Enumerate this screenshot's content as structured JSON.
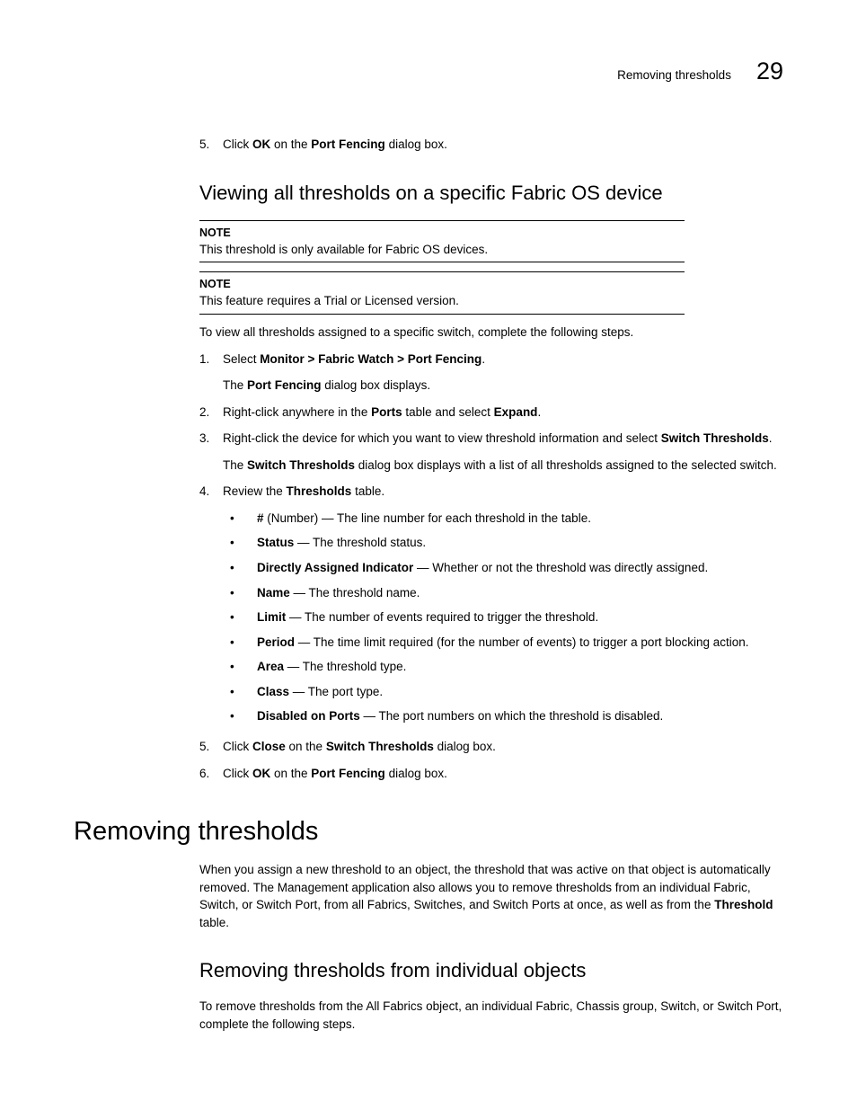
{
  "header": {
    "title": "Removing thresholds",
    "num": "29"
  },
  "step5_top": {
    "num": "5.",
    "pre": "Click ",
    "b1": "OK",
    "mid": " on the ",
    "b2": "Port Fencing",
    "post": " dialog box."
  },
  "h2a": "Viewing all thresholds on a specific Fabric OS device",
  "note1": {
    "label": "NOTE",
    "body": "This threshold is only available for Fabric OS devices."
  },
  "note2": {
    "label": "NOTE",
    "body": "This feature requires a Trial or Licensed version."
  },
  "para_intro": "To view all thresholds assigned to a specific switch, complete the following steps.",
  "s1": {
    "num": "1.",
    "pre": "Select ",
    "b": "Monitor > Fabric Watch > Port Fencing",
    "post": ".",
    "sub_pre": "The ",
    "sub_b": "Port Fencing",
    "sub_post": " dialog box displays."
  },
  "s2": {
    "num": "2.",
    "pre": "Right-click anywhere in the ",
    "b1": "Ports",
    "mid": " table and select ",
    "b2": "Expand",
    "post": "."
  },
  "s3": {
    "num": "3.",
    "pre": "Right-click the device for which you want to view threshold information and select ",
    "b": "Switch Thresholds",
    "post": ".",
    "sub_pre": "The ",
    "sub_b": "Switch Thresholds",
    "sub_post": " dialog box displays with a list of all thresholds assigned to the selected switch."
  },
  "s4": {
    "num": "4.",
    "pre": "Review the ",
    "b": "Thresholds",
    "post": " table."
  },
  "bullets": [
    {
      "b": "#",
      "post": " (Number) — The line number for each threshold in the table."
    },
    {
      "b": "Status",
      "post": " — The threshold status."
    },
    {
      "b": "Directly Assigned Indicator",
      "post": " — Whether or not the threshold was directly assigned."
    },
    {
      "b": "Name",
      "post": " — The threshold name."
    },
    {
      "b": "Limit",
      "post": " — The number of events required to trigger the threshold."
    },
    {
      "b": "Period",
      "post": " — The time limit required (for the number of events) to trigger a port blocking action."
    },
    {
      "b": "Area",
      "post": " — The threshold type."
    },
    {
      "b": "Class",
      "post": " — The port type."
    },
    {
      "b": "Disabled on Ports",
      "post": " — The port numbers on which the threshold is disabled."
    }
  ],
  "s5": {
    "num": "5.",
    "pre": "Click ",
    "b1": "Close",
    "mid": " on the ",
    "b2": "Switch Thresholds",
    "post": " dialog box."
  },
  "s6": {
    "num": "6.",
    "pre": "Click ",
    "b1": "OK",
    "mid": " on the ",
    "b2": "Port Fencing",
    "post": " dialog box."
  },
  "h1": "Removing thresholds",
  "para_h1": {
    "pre": "When you assign a new threshold to an object, the threshold that was active on that object is automatically removed. The Management application also allows you to remove thresholds from an individual Fabric, Switch, or Switch Port, from all Fabrics, Switches, and Switch Ports at once, as well as from the ",
    "b": "Threshold",
    "post": " table."
  },
  "h2b": "Removing thresholds from individual objects",
  "para_last": "To remove thresholds from the All Fabrics object, an individual Fabric, Chassis group, Switch, or Switch Port, complete the following steps."
}
